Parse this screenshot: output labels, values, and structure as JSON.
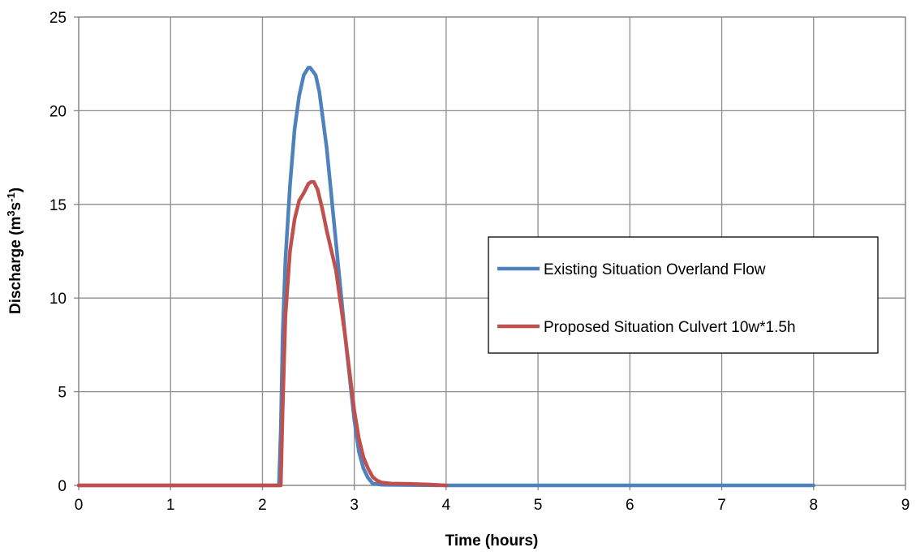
{
  "chart_data": {
    "type": "line",
    "title": "",
    "xlabel": "Time (hours)",
    "ylabel_main": "Discharge (m",
    "ylabel_sup1": "3",
    "ylabel_mid": "s",
    "ylabel_sup2": "-1",
    "ylabel_end": ")",
    "xlim": [
      0,
      9
    ],
    "ylim": [
      0,
      25
    ],
    "xticks": [
      "0",
      "1",
      "2",
      "3",
      "4",
      "5",
      "6",
      "7",
      "8",
      "9"
    ],
    "yticks": [
      "0",
      "5",
      "10",
      "15",
      "20",
      "25"
    ],
    "grid": true,
    "legend_position": "right",
    "series": [
      {
        "name": "Existing Situation Overland Flow",
        "color": "#4f81bd",
        "x": [
          0,
          2.18,
          2.2,
          2.22,
          2.25,
          2.3,
          2.35,
          2.4,
          2.45,
          2.5,
          2.52,
          2.55,
          2.58,
          2.62,
          2.7,
          2.8,
          2.9,
          3.0,
          3.05,
          3.1,
          3.15,
          3.2,
          3.3,
          4.0,
          5.0,
          6.0,
          7.0,
          8.0
        ],
        "y": [
          0,
          0,
          3,
          8,
          12,
          16,
          19,
          20.8,
          21.9,
          22.3,
          22.3,
          22.1,
          21.9,
          21,
          18,
          13,
          8,
          3.5,
          1.8,
          0.9,
          0.4,
          0.1,
          0.03,
          0,
          0,
          0,
          0,
          0
        ]
      },
      {
        "name": "Proposed Situation Culvert 10w*1.5h",
        "color": "#c0504d",
        "x": [
          0,
          2.2,
          2.22,
          2.25,
          2.3,
          2.35,
          2.4,
          2.45,
          2.5,
          2.53,
          2.56,
          2.6,
          2.65,
          2.7,
          2.8,
          2.9,
          3.0,
          3.05,
          3.1,
          3.15,
          3.2,
          3.25,
          3.3,
          3.4,
          3.6,
          3.8,
          4.0
        ],
        "y": [
          0,
          0,
          4,
          9,
          12.5,
          14.2,
          15.2,
          15.6,
          16.1,
          16.2,
          16.2,
          15.8,
          14.8,
          13.6,
          11.5,
          8,
          4,
          2.5,
          1.5,
          0.9,
          0.45,
          0.25,
          0.15,
          0.1,
          0.08,
          0.05,
          0
        ]
      }
    ]
  }
}
